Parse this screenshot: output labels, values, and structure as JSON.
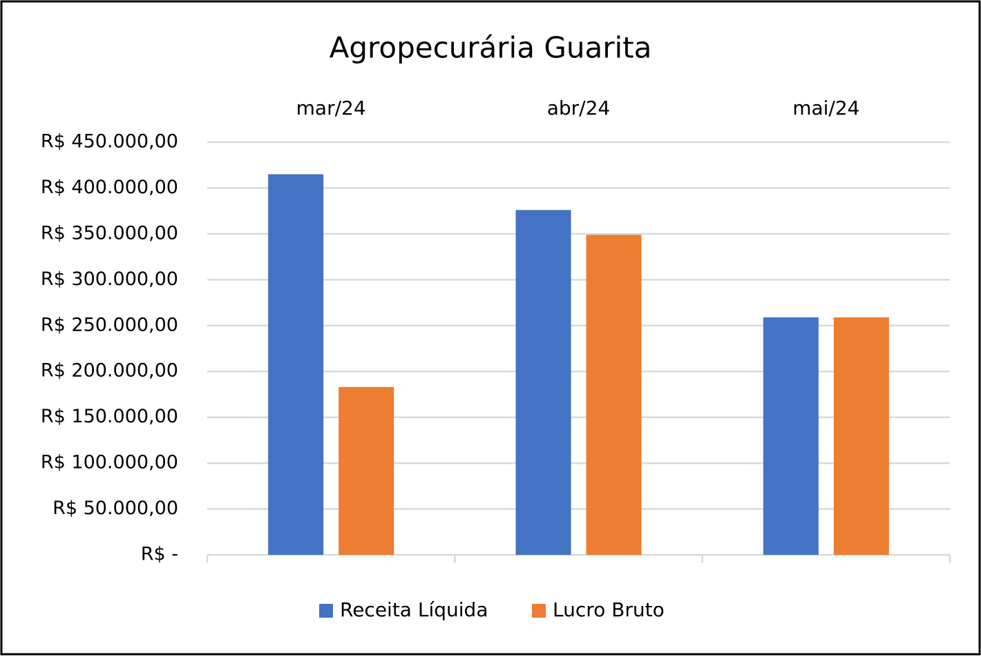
{
  "chart_data": {
    "type": "bar",
    "title": "Agropecurária Guarita",
    "categories": [
      "mar/24",
      "abr/24",
      "mai/24"
    ],
    "series": [
      {
        "name": "Receita Líquida",
        "color": "#4472c4",
        "values": [
          415000,
          376000,
          259000
        ]
      },
      {
        "name": "Lucro Bruto",
        "color": "#ed7d31",
        "values": [
          183000,
          349000,
          259000
        ]
      }
    ],
    "ylim": [
      0,
      450000
    ],
    "yticks": [
      {
        "value": 0,
        "label": "R$ -"
      },
      {
        "value": 50000,
        "label": "R$ 50.000,00"
      },
      {
        "value": 100000,
        "label": "R$ 100.000,00"
      },
      {
        "value": 150000,
        "label": "R$ 150.000,00"
      },
      {
        "value": 200000,
        "label": "R$ 200.000,00"
      },
      {
        "value": 250000,
        "label": "R$ 250.000,00"
      },
      {
        "value": 300000,
        "label": "R$ 300.000,00"
      },
      {
        "value": 350000,
        "label": "R$ 350.000,00"
      },
      {
        "value": 400000,
        "label": "R$ 400.000,00"
      },
      {
        "value": 450000,
        "label": "R$ 450.000,00"
      }
    ],
    "grid": true,
    "legend": "bottom"
  }
}
